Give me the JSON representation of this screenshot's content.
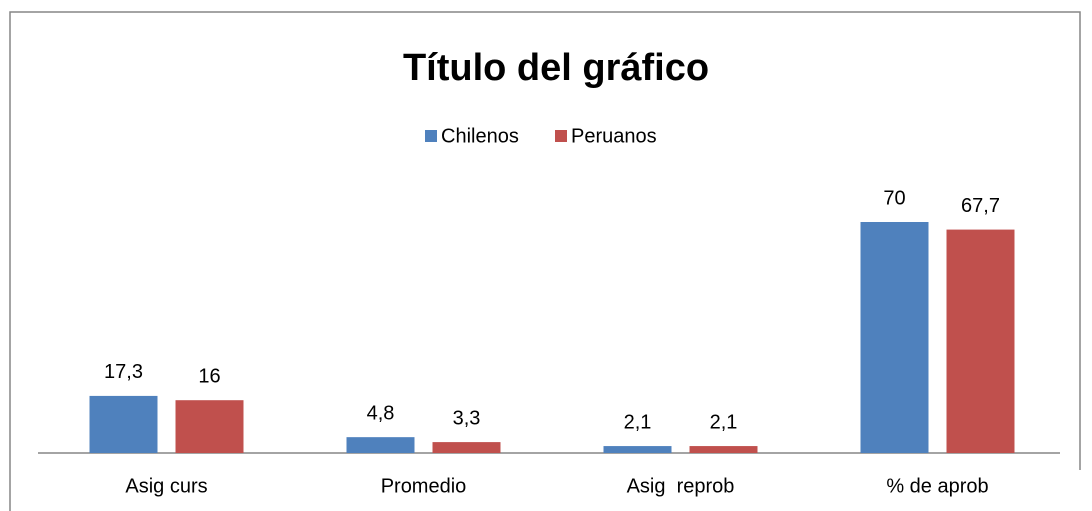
{
  "chart_data": {
    "type": "bar",
    "title": "Título del gráfico",
    "categories": [
      "Asig curs",
      "Promedio",
      "Asig  reprob",
      "% de aprob"
    ],
    "series": [
      {
        "name": "Chilenos",
        "color": "#4f81bd",
        "values": [
          17.3,
          4.8,
          2.1,
          70
        ],
        "value_labels": [
          "17,3",
          "4,8",
          "2,1",
          "70"
        ]
      },
      {
        "name": "Peruanos",
        "color": "#c0504d",
        "values": [
          16,
          3.3,
          2.1,
          67.7
        ],
        "value_labels": [
          "16",
          "3,3",
          "2,1",
          "67,7"
        ]
      }
    ],
    "legend": "top",
    "grid": false
  }
}
